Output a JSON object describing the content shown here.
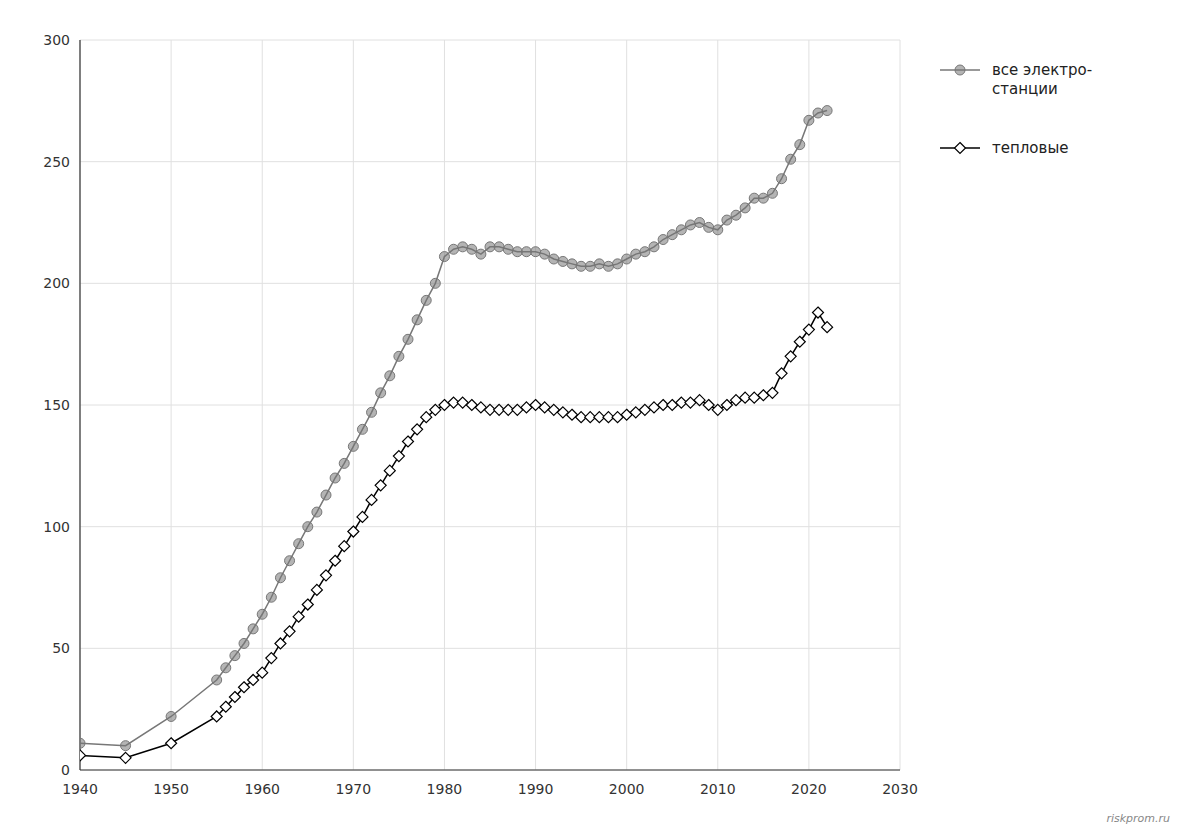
{
  "chart_data": {
    "type": "line",
    "x": [
      1940,
      1945,
      1950,
      1955,
      1956,
      1957,
      1958,
      1959,
      1960,
      1961,
      1962,
      1963,
      1964,
      1965,
      1966,
      1967,
      1968,
      1969,
      1970,
      1971,
      1972,
      1973,
      1974,
      1975,
      1976,
      1977,
      1978,
      1979,
      1980,
      1981,
      1982,
      1983,
      1984,
      1985,
      1986,
      1987,
      1988,
      1989,
      1990,
      1991,
      1992,
      1993,
      1994,
      1995,
      1996,
      1997,
      1998,
      1999,
      2000,
      2001,
      2002,
      2003,
      2004,
      2005,
      2006,
      2007,
      2008,
      2009,
      2010,
      2011,
      2012,
      2013,
      2014,
      2015,
      2016,
      2017,
      2018,
      2019,
      2020,
      2021,
      2022
    ],
    "series": [
      {
        "name": "все электро-\nстанции",
        "color": "#777777",
        "marker": "circle",
        "values": [
          11,
          10,
          22,
          37,
          42,
          47,
          52,
          58,
          64,
          71,
          79,
          86,
          93,
          100,
          106,
          113,
          120,
          126,
          133,
          140,
          147,
          155,
          162,
          170,
          177,
          185,
          193,
          200,
          211,
          214,
          215,
          214,
          212,
          215,
          215,
          214,
          213,
          213,
          213,
          212,
          210,
          209,
          208,
          207,
          207,
          208,
          207,
          208,
          210,
          212,
          213,
          215,
          218,
          220,
          222,
          224,
          225,
          223,
          222,
          226,
          228,
          231,
          235,
          235,
          237,
          243,
          251,
          257,
          267,
          270,
          271
        ]
      },
      {
        "name": "тепловые",
        "color": "#000000",
        "marker": "diamond",
        "values": [
          6,
          5,
          11,
          22,
          26,
          30,
          34,
          37,
          40,
          46,
          52,
          57,
          63,
          68,
          74,
          80,
          86,
          92,
          98,
          104,
          111,
          117,
          123,
          129,
          135,
          140,
          145,
          148,
          150,
          151,
          151,
          150,
          149,
          148,
          148,
          148,
          148,
          149,
          150,
          149,
          148,
          147,
          146,
          145,
          145,
          145,
          145,
          145,
          146,
          147,
          148,
          149,
          150,
          150,
          151,
          151,
          152,
          150,
          148,
          150,
          152,
          153,
          153,
          154,
          155,
          163,
          170,
          176,
          181,
          188,
          182
        ]
      }
    ],
    "xlim": [
      1940,
      2030
    ],
    "ylim": [
      0,
      300
    ],
    "xticks": [
      1940,
      1950,
      1960,
      1970,
      1980,
      1990,
      2000,
      2010,
      2020,
      2030
    ],
    "yticks": [
      0,
      50,
      100,
      150,
      200,
      250,
      300
    ],
    "grid": true,
    "legend": "right",
    "annotations": [
      "riskprom.ru"
    ]
  }
}
